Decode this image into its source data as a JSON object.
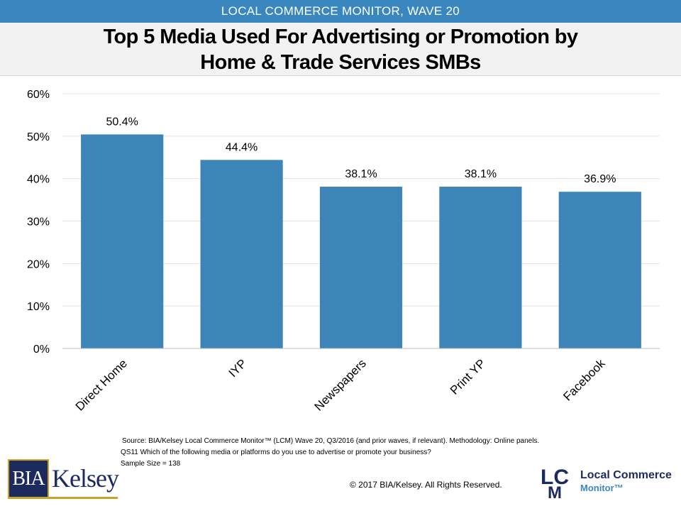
{
  "header": {
    "banner": "LOCAL COMMERCE MONITOR, WAVE 20",
    "title_line1": "Top 5 Media Used For Advertising or Promotion by",
    "title_line2": "Home & Trade Services SMBs"
  },
  "chart_data": {
    "type": "bar",
    "categories": [
      "Direct Home",
      "IYP",
      "Newspapers",
      "Print YP",
      "Facebook"
    ],
    "values": [
      50.4,
      44.4,
      38.1,
      38.1,
      36.9
    ],
    "data_labels": [
      "50.4%",
      "44.4%",
      "38.1%",
      "38.1%",
      "36.9%"
    ],
    "ylim": [
      0,
      60
    ],
    "yticks": [
      0,
      10,
      20,
      30,
      40,
      50,
      60
    ],
    "ytick_labels": [
      "0%",
      "10%",
      "20%",
      "30%",
      "40%",
      "50%",
      "60%"
    ],
    "grid": true,
    "legend": "none",
    "bar_color": "#3d85b8"
  },
  "footer": {
    "source_line1": "Source: BIA/Kelsey Local Commerce Monitor™ (LCM) Wave 20, Q3/2016 (and prior waves, if relevant). Methodology: Online panels.",
    "source_line2": "QS11 Which of the following media or platforms do you use to advertise or promote your business?",
    "source_line3": "Sample Size = 138",
    "copyright": "© 2017 BIA/Kelsey. All Rights Reserved."
  },
  "logos": {
    "bia_left": "BIA",
    "bia_right": "Kelsey",
    "lcm_letters": "LCM",
    "lcm_line1": "Local Commerce",
    "lcm_line2": "Monitor™"
  },
  "colors": {
    "banner": "#3a87c0",
    "navy": "#1c2a5e",
    "gold": "#c9a227"
  }
}
